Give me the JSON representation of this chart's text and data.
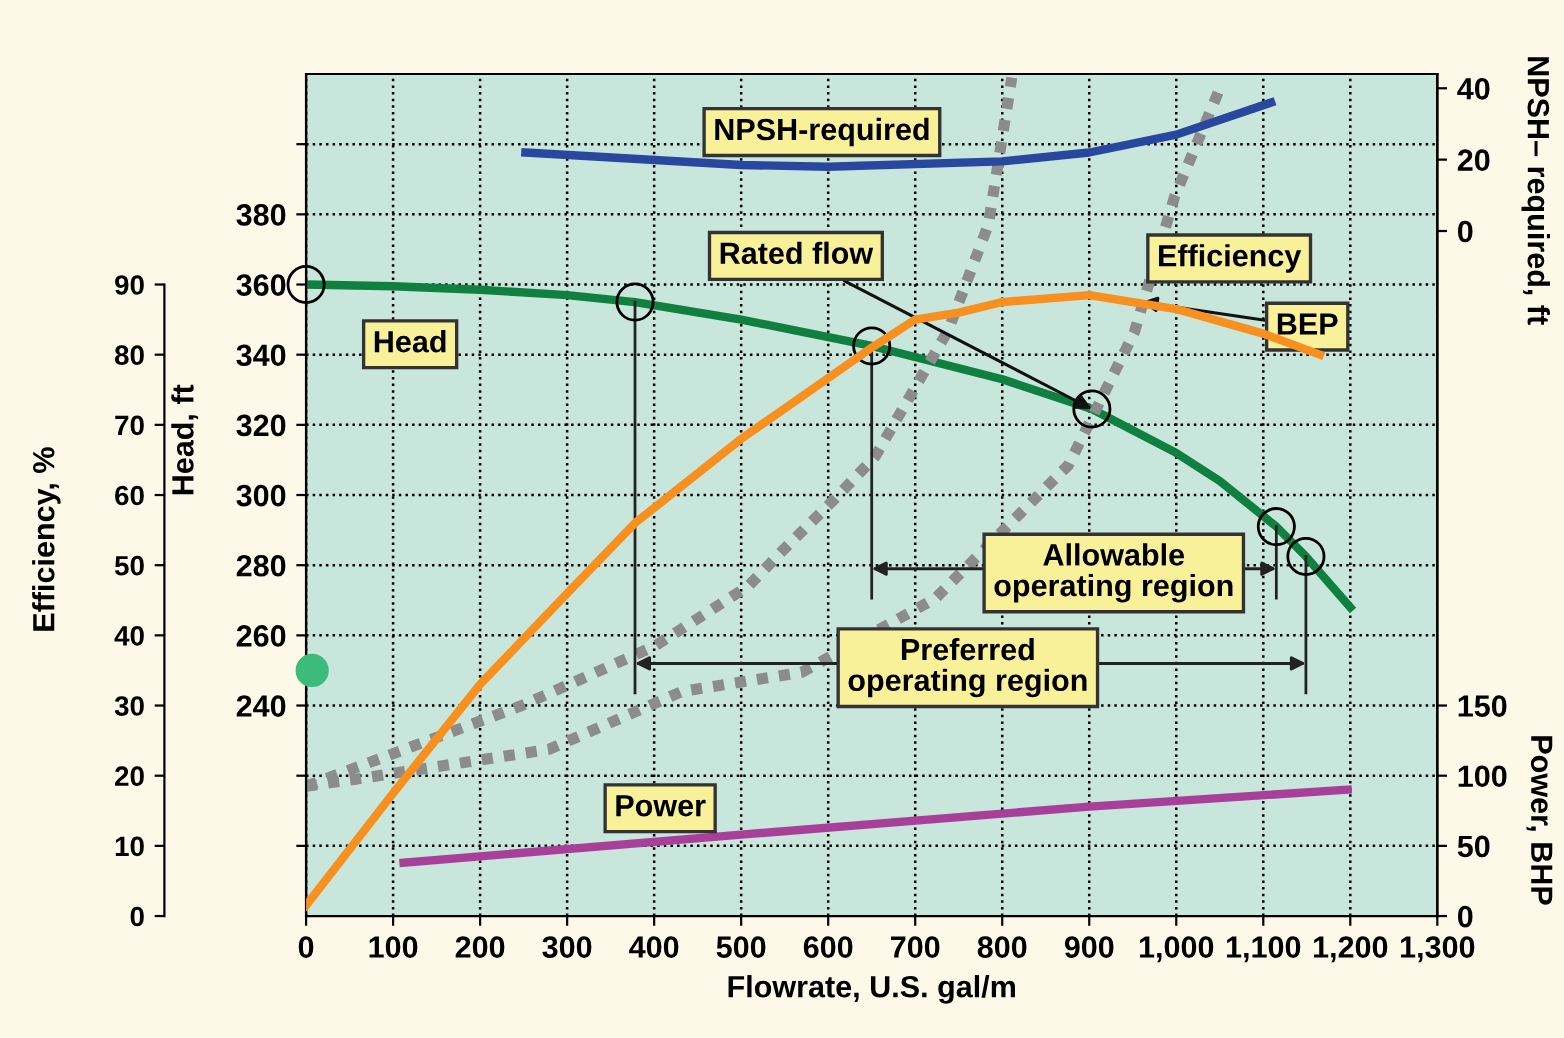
{
  "chart_data": [
    {
      "type": "line",
      "xlabel": "Flowrate, U.S. gal/m",
      "ylabel": "Head, ft",
      "y2label": "NPSH– required, ft",
      "y3label": "Efficiency, %",
      "xlim": [
        0,
        1300
      ],
      "xticks": [
        0,
        100,
        200,
        300,
        400,
        500,
        600,
        700,
        800,
        900,
        {
          "value": 1000,
          "label": "1,000"
        },
        {
          "value": 1100,
          "label": "1,100"
        },
        {
          "value": 1200,
          "label": "1,200"
        },
        {
          "value": 1300,
          "label": "1,300"
        }
      ],
      "ylim": [
        180,
        420
      ],
      "yticks": [
        {
          "value": 200,
          "label": null
        },
        {
          "value": 220,
          "label": null
        },
        240,
        260,
        280,
        300,
        320,
        340,
        360,
        380,
        {
          "value": 400,
          "label": null
        }
      ],
      "y2lim": [
        -192,
        44
      ],
      "y2ticks": [
        0,
        20,
        40
      ],
      "y3lim": [
        0,
        120
      ],
      "y3ticks": [
        0,
        10,
        20,
        30,
        40,
        50,
        60,
        70,
        80,
        90
      ],
      "grid": true,
      "series": [
        {
          "name": "Head",
          "color": "#0f8040",
          "x": [
            0,
            100,
            200,
            300,
            378,
            500,
            650,
            800,
            903,
            1000,
            1050,
            1115,
            1149,
            1200
          ],
          "values": [
            360,
            359.5,
            358.5,
            357,
            355,
            350,
            342.5,
            333,
            324.5,
            312,
            304,
            291,
            282.5,
            268
          ]
        },
        {
          "name": "Efficiency",
          "color": "#f7901e",
          "axis": "y3",
          "x": [
            0,
            100,
            200,
            300,
            378,
            500,
            650,
            700,
            750,
            800,
            900,
            1000,
            1100,
            1165
          ],
          "values": [
            1.5,
            17.5,
            33,
            46,
            56,
            68,
            81,
            85,
            86,
            87.5,
            88.5,
            86.5,
            83,
            80
          ]
        },
        {
          "name": "NPSH-required",
          "color": "#2a47a0",
          "axis": "y2",
          "x": [
            252,
            500,
            600,
            800,
            900,
            1000,
            1109
          ],
          "values": [
            22,
            18.5,
            18,
            19.5,
            22,
            27,
            36
          ]
        },
        {
          "color": "#8c8c8c",
          "line_style": "dotted",
          "x": [
            0,
            248,
            401,
            508,
            547,
            608,
            654,
            738,
            784,
            811
          ],
          "values": [
            217,
            240,
            257,
            274,
            284,
            299,
            311,
            347,
            377,
            419
          ]
        },
        {
          "color": "#8c8c8c",
          "line_style": "dotted",
          "x": [
            0,
            57,
            279,
            432,
            570,
            723,
            876,
            914,
            952,
            998,
            1052
          ],
          "values": [
            217,
            219,
            227.5,
            244,
            249.5,
            270.5,
            308.5,
            327.5,
            346.5,
            385,
            417
          ]
        },
        {
          "type": "scatter",
          "color": "#000000",
          "marker": "circle",
          "x": [
            0,
            378,
            650,
            903,
            1115,
            1149
          ],
          "values": [
            360,
            355,
            342.5,
            324.5,
            291,
            282.5
          ]
        },
        {
          "type": "bubble",
          "color": "#3dbb7a",
          "axis": "y3",
          "x": [
            7
          ],
          "values": [
            35
          ],
          "sizes": [
            1
          ]
        }
      ],
      "ref_lines": [
        {
          "axis": "x",
          "value": 650
        },
        {
          "axis": "x",
          "value": 1115
        },
        {
          "axis": "x",
          "value": 378
        },
        {
          "axis": "x",
          "value": 1149
        }
      ],
      "annotations": [
        {
          "text": "Rated flow",
          "x": 903,
          "y": 324.5
        },
        {
          "text": "BEP",
          "x": 960,
          "y": 355
        },
        {
          "text": "Allowable\noperating region",
          "x": 1115,
          "y": 279
        },
        {
          "text": "Preferred\noperating region",
          "x": 1149,
          "y": 252
        }
      ]
    },
    {
      "type": "line",
      "ylabel": "Power, BHP",
      "xlim": [
        0,
        1300
      ],
      "ylim": [
        0,
        600
      ],
      "yticks": [
        0,
        50,
        100,
        150
      ],
      "tick_labels": "y",
      "series": [
        {
          "name": "Power",
          "color": "#a8409a",
          "x": [
            112,
            500,
            900,
            1197
          ],
          "values": [
            38,
            58,
            78,
            90
          ]
        }
      ]
    }
  ]
}
